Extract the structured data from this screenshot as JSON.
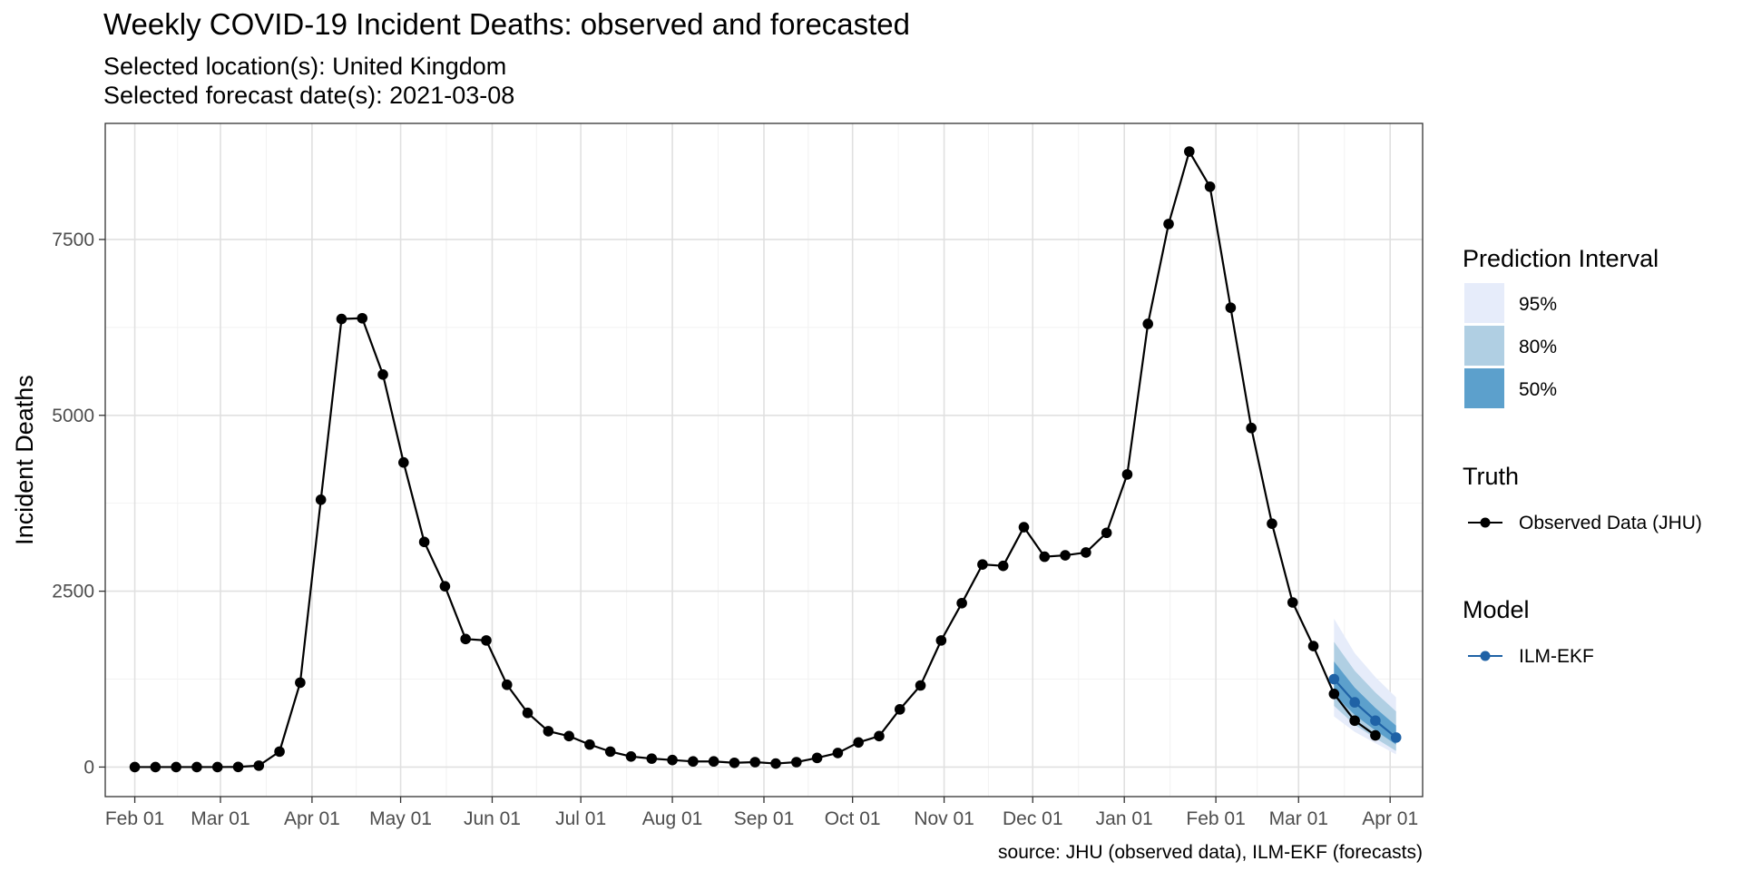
{
  "chart_data": {
    "type": "line",
    "title": "Weekly COVID-19 Incident Deaths: observed and forecasted",
    "subtitle_location": "Selected location(s): United Kingdom",
    "subtitle_date": "Selected forecast date(s): 2021-03-08",
    "ylabel": "Incident Deaths",
    "caption": "source: JHU (observed data), ILM-EKF (forecasts)",
    "xlim": [
      "2020-01-22",
      "2021-04-12"
    ],
    "ylim": [
      -420,
      9150
    ],
    "x_ticks": [
      {
        "date": "2020-02-01",
        "label": "Feb 01"
      },
      {
        "date": "2020-03-01",
        "label": "Mar 01"
      },
      {
        "date": "2020-04-01",
        "label": "Apr 01"
      },
      {
        "date": "2020-05-01",
        "label": "May 01"
      },
      {
        "date": "2020-06-01",
        "label": "Jun 01"
      },
      {
        "date": "2020-07-01",
        "label": "Jul 01"
      },
      {
        "date": "2020-08-01",
        "label": "Aug 01"
      },
      {
        "date": "2020-09-01",
        "label": "Sep 01"
      },
      {
        "date": "2020-10-01",
        "label": "Oct 01"
      },
      {
        "date": "2020-11-01",
        "label": "Nov 01"
      },
      {
        "date": "2020-12-01",
        "label": "Dec 01"
      },
      {
        "date": "2021-01-01",
        "label": "Jan 01"
      },
      {
        "date": "2021-02-01",
        "label": "Feb 01"
      },
      {
        "date": "2021-03-01",
        "label": "Mar 01"
      },
      {
        "date": "2021-04-01",
        "label": "Apr 01"
      }
    ],
    "y_ticks": [
      0,
      2500,
      5000,
      7500
    ],
    "grid": true,
    "legend_position": "right",
    "observed": {
      "name": "Observed Data (JHU)",
      "color": "#000000",
      "dates": [
        "2020-02-01",
        "2020-02-08",
        "2020-02-15",
        "2020-02-22",
        "2020-02-29",
        "2020-03-07",
        "2020-03-14",
        "2020-03-21",
        "2020-03-28",
        "2020-04-04",
        "2020-04-11",
        "2020-04-18",
        "2020-04-25",
        "2020-05-02",
        "2020-05-09",
        "2020-05-16",
        "2020-05-23",
        "2020-05-30",
        "2020-06-06",
        "2020-06-13",
        "2020-06-20",
        "2020-06-27",
        "2020-07-04",
        "2020-07-11",
        "2020-07-18",
        "2020-07-25",
        "2020-08-01",
        "2020-08-08",
        "2020-08-15",
        "2020-08-22",
        "2020-08-29",
        "2020-09-05",
        "2020-09-12",
        "2020-09-19",
        "2020-09-26",
        "2020-10-03",
        "2020-10-10",
        "2020-10-17",
        "2020-10-24",
        "2020-10-31",
        "2020-11-07",
        "2020-11-14",
        "2020-11-21",
        "2020-11-28",
        "2020-12-05",
        "2020-12-12",
        "2020-12-19",
        "2020-12-26",
        "2021-01-02",
        "2021-01-09",
        "2021-01-16",
        "2021-01-23",
        "2021-01-30",
        "2021-02-06",
        "2021-02-13",
        "2021-02-20",
        "2021-02-27",
        "2021-03-06",
        "2021-03-13",
        "2021-03-20",
        "2021-03-27"
      ],
      "values": [
        0,
        0,
        0,
        0,
        0,
        2,
        20,
        220,
        1200,
        3800,
        6370,
        6380,
        5580,
        4330,
        3200,
        2570,
        1820,
        1800,
        1170,
        770,
        510,
        440,
        320,
        220,
        150,
        120,
        100,
        80,
        80,
        60,
        70,
        50,
        70,
        130,
        200,
        350,
        440,
        820,
        1160,
        1800,
        2330,
        2880,
        2860,
        3410,
        2990,
        3010,
        3050,
        3330,
        4160,
        6300,
        7720,
        8750,
        8250,
        6530,
        4820,
        3460,
        2340,
        1720,
        1040,
        660,
        450
      ]
    },
    "forecast": {
      "name": "ILM-EKF",
      "color": "#1f62a6",
      "dates": [
        "2021-03-13",
        "2021-03-20",
        "2021-03-27",
        "2021-04-03"
      ],
      "values": [
        1250,
        920,
        660,
        420
      ],
      "intervals": [
        {
          "level": "95%",
          "color": "#e6ecfa",
          "lower": [
            720,
            500,
            340,
            180
          ],
          "upper": [
            2110,
            1620,
            1280,
            990
          ]
        },
        {
          "level": "80%",
          "color": "#b0cfe3",
          "lower": [
            870,
            600,
            410,
            230
          ],
          "upper": [
            1780,
            1370,
            1060,
            790
          ]
        },
        {
          "level": "50%",
          "color": "#5ca0cc",
          "lower": [
            1030,
            740,
            520,
            320
          ],
          "upper": [
            1500,
            1130,
            840,
            590
          ]
        }
      ]
    },
    "legend": {
      "interval_title": "Prediction Interval",
      "interval_items": [
        {
          "label": "95%",
          "color": "#e6ecfa"
        },
        {
          "label": "80%",
          "color": "#b0cfe3"
        },
        {
          "label": "50%",
          "color": "#5ca0cc"
        }
      ],
      "truth_title": "Truth",
      "truth_label": "Observed Data (JHU)",
      "model_title": "Model",
      "model_label": "ILM-EKF"
    }
  }
}
